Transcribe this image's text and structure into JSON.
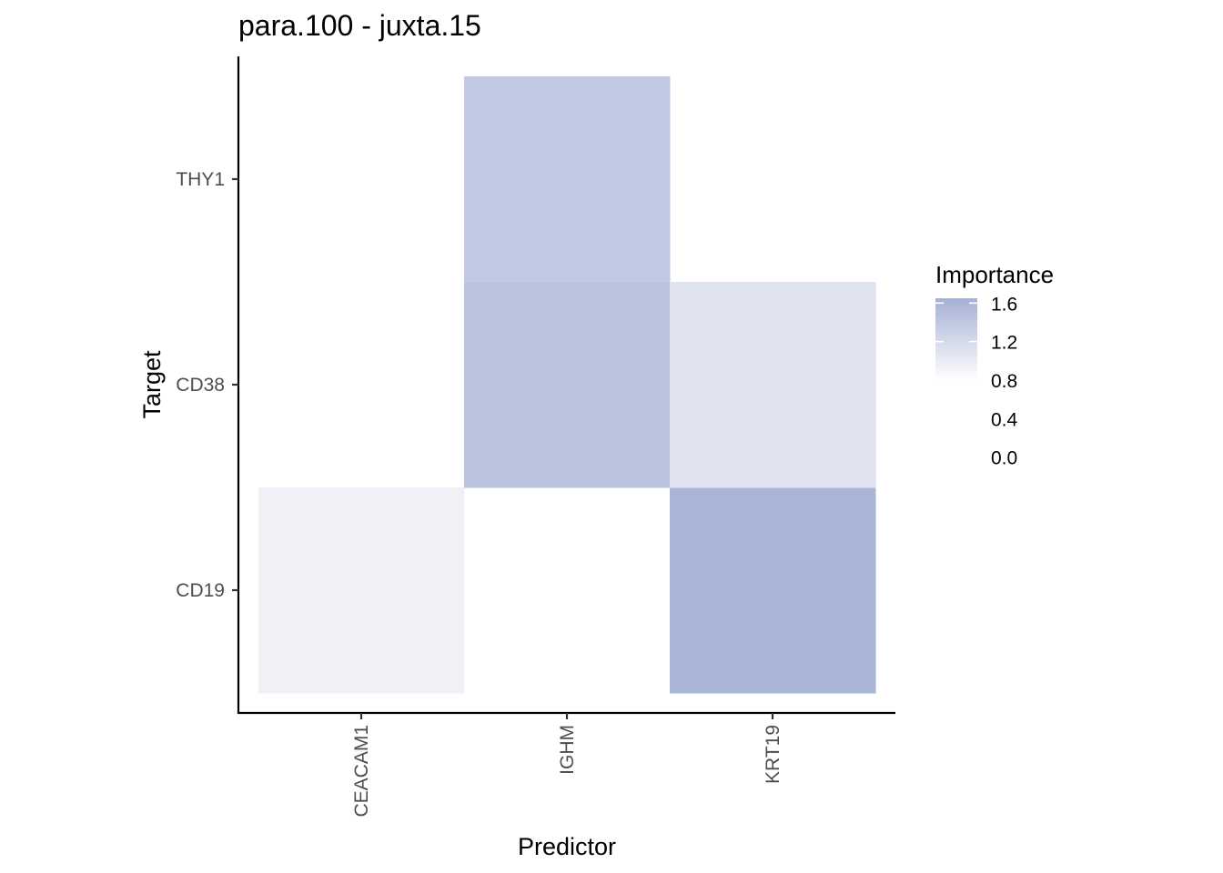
{
  "chart_data": {
    "type": "heatmap",
    "title": "para.100 - juxta.15",
    "xlabel": "Predictor",
    "ylabel": "Target",
    "x_categories": [
      "CEACAM1",
      "IGHM",
      "KRT19"
    ],
    "y_categories": [
      "CD19",
      "CD38",
      "THY1"
    ],
    "cells": [
      {
        "x": "CEACAM1",
        "y": "CD19",
        "value": 0.95
      },
      {
        "x": "IGHM",
        "y": "CD38",
        "value": 1.45
      },
      {
        "x": "IGHM",
        "y": "THY1",
        "value": 1.38
      },
      {
        "x": "KRT19",
        "y": "CD19",
        "value": 1.6
      },
      {
        "x": "KRT19",
        "y": "CD38",
        "value": 1.1
      }
    ],
    "legend": {
      "title": "Importance",
      "ticks": [
        "1.6",
        "1.2",
        "0.8",
        "0.4",
        "0.0"
      ],
      "tick_values": [
        1.6,
        1.2,
        0.8,
        0.4,
        0.0
      ],
      "gradient_range": [
        0.8,
        1.65
      ],
      "placement": "right"
    },
    "colors": {
      "low": "#ffffff",
      "high": "#a5b0d4"
    },
    "grid": false
  }
}
